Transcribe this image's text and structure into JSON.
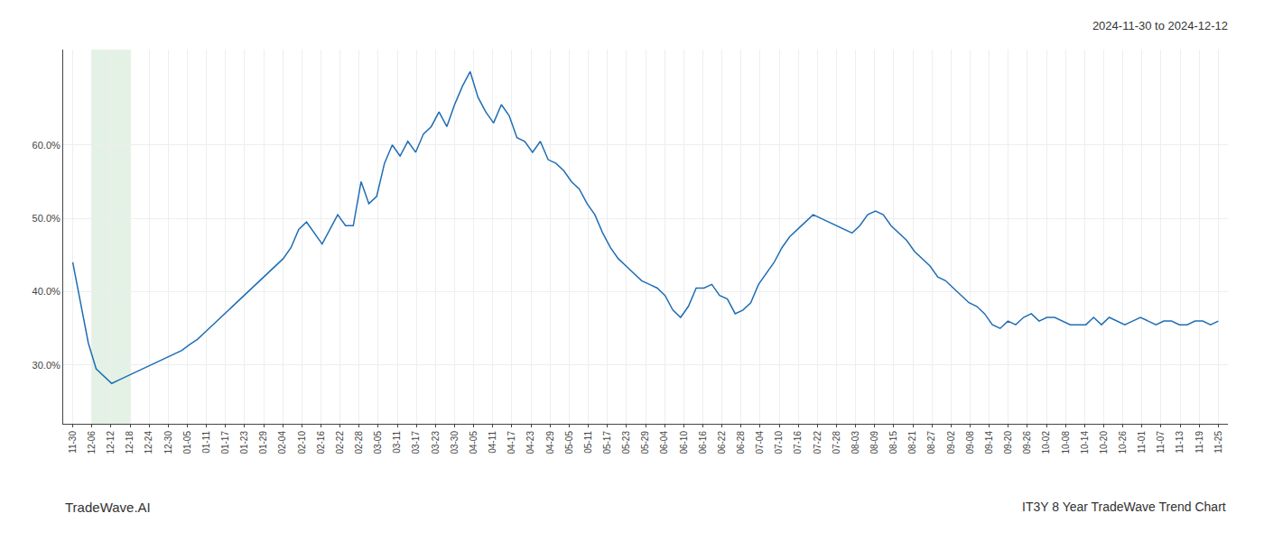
{
  "chart_data": {
    "type": "line",
    "title": "2024-11-30 to 2024-12-12",
    "annotations": [
      "TradeWave.AI",
      "IT3Y 8 Year TradeWave Trend Chart"
    ],
    "color": "#1f6eb5",
    "x": [
      0,
      0.4082,
      0.8163,
      1.2245,
      1.6327,
      2.0408,
      2.449,
      2.8571,
      3.2653,
      3.6735,
      4.0816,
      4.4898,
      4.898,
      5.3061,
      5.7143,
      6.1224,
      6.5306,
      6.9388,
      7.3469,
      7.7551,
      8.1633,
      8.5714,
      8.9796,
      9.3878,
      9.7959,
      10.2041,
      10.6122,
      11.0204,
      11.4286,
      11.8367,
      12.2449,
      12.6531,
      13.0612,
      13.4694,
      13.8776,
      14.2857,
      14.6939,
      15.102,
      15.5102,
      15.9184,
      16.3265,
      16.7347,
      17.1429,
      17.551,
      17.9592,
      18.3673,
      18.7755,
      19.1837,
      19.5918,
      20,
      20.4082,
      20.8163,
      21.2245,
      21.6327,
      22.0408,
      22.449,
      22.8571,
      23.2653,
      23.6735,
      24.0816,
      24.4898,
      24.898,
      25.3061,
      25.7143,
      26.1224,
      26.5306,
      26.9388,
      27.3469,
      27.7551,
      28.1633,
      28.5714,
      28.9796,
      29.3878,
      29.7959,
      30.2041,
      30.6122,
      31.0204,
      31.4286,
      31.8367,
      32.2449,
      32.6531,
      33.0612,
      33.4694,
      33.8776,
      34.2857,
      34.6939,
      35.102,
      35.5102,
      35.9184,
      36.3265,
      36.7347,
      37.1429,
      37.551,
      37.9592,
      38.3673,
      38.7755,
      39.1837,
      39.5918,
      40,
      40.4082,
      40.8163,
      41.2245,
      41.6327,
      42.0408,
      42.449,
      42.8571,
      43.2653,
      43.6735,
      44.0816,
      44.4898,
      44.898,
      45.3061,
      45.7143,
      46.1224,
      46.5306,
      46.9388,
      47.3469,
      47.7551,
      48.1633,
      48.5714,
      48.9796,
      49.3878,
      49.7959,
      50.2041,
      50.6122,
      51.0204,
      51.4286,
      51.8367,
      52.2449,
      52.6531,
      53.0612,
      53.4694,
      53.8776,
      54.2857,
      54.6939,
      55.102,
      55.5102,
      55.9184,
      56.3265,
      56.7347,
      57.1429,
      57.551,
      57.9592,
      58.3673,
      58.7755,
      59.1837,
      59.5918,
      60
    ],
    "values": [
      44.0,
      38.5,
      33.0,
      29.5,
      28.5,
      27.5,
      28.0,
      28.5,
      29.0,
      29.5,
      30.0,
      30.5,
      31.0,
      31.5,
      32.0,
      32.8,
      33.5,
      34.5,
      35.5,
      36.5,
      37.5,
      38.5,
      39.5,
      40.5,
      41.5,
      42.5,
      43.5,
      44.5,
      46.0,
      48.5,
      49.5,
      48.0,
      46.5,
      48.5,
      50.5,
      49.0,
      49.0,
      55.0,
      52.0,
      53.0,
      57.5,
      60.0,
      58.5,
      60.5,
      59.0,
      61.5,
      62.5,
      64.5,
      62.5,
      65.5,
      68.0,
      70.0,
      66.5,
      64.5,
      63.0,
      65.5,
      64.0,
      61.0,
      60.5,
      59.0,
      60.5,
      58.0,
      57.5,
      56.5,
      55.0,
      54.0,
      52.0,
      50.5,
      48.0,
      46.0,
      44.5,
      43.5,
      42.5,
      41.5,
      41.0,
      40.5,
      39.5,
      37.5,
      36.5,
      38.0,
      40.5,
      40.5,
      41.0,
      39.5,
      39.0,
      37.0,
      37.5,
      38.5,
      41.0,
      42.5,
      44.0,
      46.0,
      47.5,
      48.5,
      49.5,
      50.5,
      50.0,
      49.5,
      49.0,
      48.5,
      48.0,
      49.0,
      50.5,
      51.0,
      50.5,
      49.0,
      48.0,
      47.0,
      45.5,
      44.5,
      43.5,
      42.0,
      41.5,
      40.5,
      39.5,
      38.5,
      38.0,
      37.0,
      35.5,
      35.0,
      36.0,
      35.5,
      36.5,
      37.0,
      36.0,
      36.5,
      36.5,
      36.0,
      35.5,
      35.5,
      35.5,
      36.5,
      35.5,
      36.5,
      36.0,
      35.5,
      36.0,
      36.5,
      36.0,
      35.5,
      36.0,
      36.0,
      35.5,
      35.5,
      36.0,
      36.0,
      35.5,
      36.0
    ],
    "xlim": [
      -0.5,
      60.5
    ],
    "xticks": [
      {
        "value": 0,
        "label": "11-30"
      },
      {
        "value": 1,
        "label": "12-06"
      },
      {
        "value": 2,
        "label": "12-12"
      },
      {
        "value": 3,
        "label": "12-18"
      },
      {
        "value": 4,
        "label": "12-24"
      },
      {
        "value": 5,
        "label": "12-30"
      },
      {
        "value": 6,
        "label": "01-05"
      },
      {
        "value": 7,
        "label": "01-11"
      },
      {
        "value": 8,
        "label": "01-17"
      },
      {
        "value": 9,
        "label": "01-23"
      },
      {
        "value": 10,
        "label": "01-29"
      },
      {
        "value": 11,
        "label": "02-04"
      },
      {
        "value": 12,
        "label": "02-10"
      },
      {
        "value": 13,
        "label": "02-16"
      },
      {
        "value": 14,
        "label": "02-22"
      },
      {
        "value": 15,
        "label": "02-28"
      },
      {
        "value": 16,
        "label": "03-05"
      },
      {
        "value": 17,
        "label": "03-11"
      },
      {
        "value": 18,
        "label": "03-17"
      },
      {
        "value": 19,
        "label": "03-23"
      },
      {
        "value": 20,
        "label": "03-30"
      },
      {
        "value": 21,
        "label": "04-05"
      },
      {
        "value": 22,
        "label": "04-11"
      },
      {
        "value": 23,
        "label": "04-17"
      },
      {
        "value": 24,
        "label": "04-23"
      },
      {
        "value": 25,
        "label": "04-29"
      },
      {
        "value": 26,
        "label": "05-05"
      },
      {
        "value": 27,
        "label": "05-11"
      },
      {
        "value": 28,
        "label": "05-17"
      },
      {
        "value": 29,
        "label": "05-23"
      },
      {
        "value": 30,
        "label": "05-29"
      },
      {
        "value": 31,
        "label": "06-04"
      },
      {
        "value": 32,
        "label": "06-10"
      },
      {
        "value": 33,
        "label": "06-16"
      },
      {
        "value": 34,
        "label": "06-22"
      },
      {
        "value": 35,
        "label": "06-28"
      },
      {
        "value": 36,
        "label": "07-04"
      },
      {
        "value": 37,
        "label": "07-10"
      },
      {
        "value": 38,
        "label": "07-16"
      },
      {
        "value": 39,
        "label": "07-22"
      },
      {
        "value": 40,
        "label": "07-28"
      },
      {
        "value": 41,
        "label": "08-03"
      },
      {
        "value": 42,
        "label": "08-09"
      },
      {
        "value": 43,
        "label": "08-15"
      },
      {
        "value": 44,
        "label": "08-21"
      },
      {
        "value": 45,
        "label": "08-27"
      },
      {
        "value": 46,
        "label": "09-02"
      },
      {
        "value": 47,
        "label": "09-08"
      },
      {
        "value": 48,
        "label": "09-14"
      },
      {
        "value": 49,
        "label": "09-20"
      },
      {
        "value": 50,
        "label": "09-26"
      },
      {
        "value": 51,
        "label": "10-02"
      },
      {
        "value": 52,
        "label": "10-08"
      },
      {
        "value": 53,
        "label": "10-14"
      },
      {
        "value": 54,
        "label": "10-20"
      },
      {
        "value": 55,
        "label": "10-26"
      },
      {
        "value": 56,
        "label": "11-01"
      },
      {
        "value": 57,
        "label": "11-07"
      },
      {
        "value": 58,
        "label": "11-13"
      },
      {
        "value": 59,
        "label": "11-19"
      },
      {
        "value": 60,
        "label": "11-25"
      }
    ],
    "ylim": [
      22,
      73
    ],
    "yticks": [
      {
        "value": 30.0,
        "label": "30.0%"
      },
      {
        "value": 40.0,
        "label": "40.0%"
      },
      {
        "value": 50.0,
        "label": "50.0%"
      },
      {
        "value": 60.0,
        "label": "60.0%"
      }
    ],
    "shaded_x_range": [
      1,
      3
    ],
    "shade_color": "#c8e6c9",
    "grid": true
  }
}
